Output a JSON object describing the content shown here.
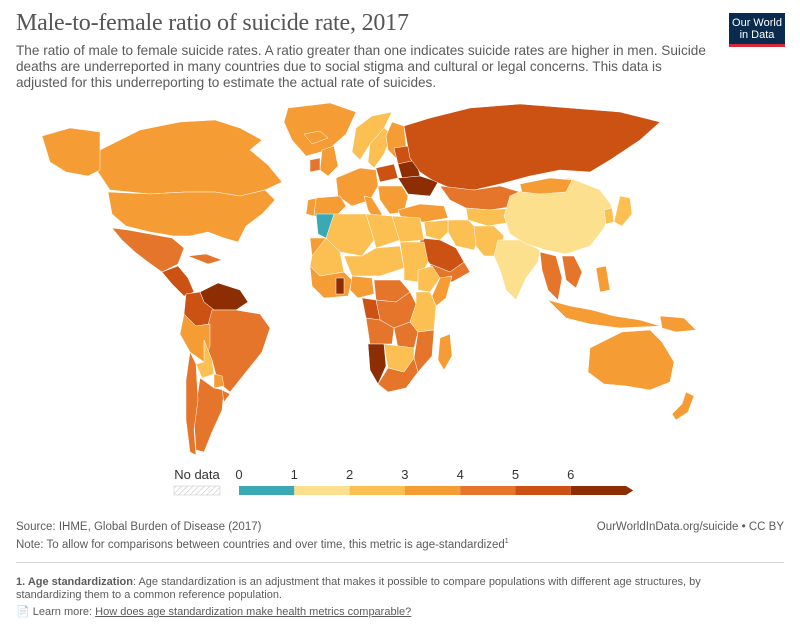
{
  "header": {
    "title": "Male-to-female ratio of suicide rate, 2017",
    "subtitle": "The ratio of male to female suicide rates. A ratio greater than one indicates suicide rates are higher in men. Suicide deaths are underreported in many countries due to social stigma and cultural or legal concerns. This data is adjusted for this underreporting to estimate the actual rate of suicides."
  },
  "logo": {
    "line1": "Our World",
    "line2": "in Data",
    "bg": "#0b2b4e",
    "accent": "#d42a37"
  },
  "legend": {
    "no_data_label": "No data",
    "ticks": [
      "0",
      "1",
      "2",
      "3",
      "4",
      "5",
      "6"
    ],
    "colors": [
      "#3aa9b4",
      "#fce08e",
      "#fbbf52",
      "#f69c34",
      "#e4752a",
      "#cc5214",
      "#8c2d04"
    ]
  },
  "map_regions": [
    {
      "name": "Canada",
      "value": 3.0
    },
    {
      "name": "United States",
      "value": 3.7
    },
    {
      "name": "Greenland",
      "value": 3.4
    },
    {
      "name": "Alaska",
      "value": 3.8
    },
    {
      "name": "Mexico",
      "value": 4.2
    },
    {
      "name": "Central America",
      "value": 5.1
    },
    {
      "name": "Cuba",
      "value": 4.0
    },
    {
      "name": "Venezuela",
      "value": 6.0
    },
    {
      "name": "Colombia",
      "value": 5.2
    },
    {
      "name": "Brazil",
      "value": 4.3
    },
    {
      "name": "Peru",
      "value": 3.4
    },
    {
      "name": "Bolivia",
      "value": 2.5
    },
    {
      "name": "Paraguay",
      "value": 3.8
    },
    {
      "name": "Argentina",
      "value": 4.4
    },
    {
      "name": "Chile",
      "value": 4.6
    },
    {
      "name": "Uruguay",
      "value": 4.8
    },
    {
      "name": "Iceland",
      "value": 3.8
    },
    {
      "name": "Norway",
      "value": 2.9
    },
    {
      "name": "Sweden",
      "value": 2.6
    },
    {
      "name": "Finland",
      "value": 3.1
    },
    {
      "name": "United Kingdom",
      "value": 3.7
    },
    {
      "name": "Ireland",
      "value": 4.2
    },
    {
      "name": "Western Europe",
      "value": 3.2
    },
    {
      "name": "Spain",
      "value": 3.5
    },
    {
      "name": "Portugal",
      "value": 3.9
    },
    {
      "name": "Italy",
      "value": 3.6
    },
    {
      "name": "Poland",
      "value": 5.6
    },
    {
      "name": "Baltic States",
      "value": 5.7
    },
    {
      "name": "Belarus",
      "value": 6.1
    },
    {
      "name": "Ukraine",
      "value": 6.2
    },
    {
      "name": "Balkans",
      "value": 3.6
    },
    {
      "name": "Turkey",
      "value": 3.2
    },
    {
      "name": "Russia",
      "value": 5.1
    },
    {
      "name": "Kazakhstan",
      "value": 4.7
    },
    {
      "name": "Central Asia",
      "value": 2.8
    },
    {
      "name": "Iran",
      "value": 2.3
    },
    {
      "name": "Iraq / Syria",
      "value": 2.7
    },
    {
      "name": "Saudi Arabia",
      "value": 5.1
    },
    {
      "name": "Yemen / Oman",
      "value": 4.3
    },
    {
      "name": "Afghanistan / Pakistan",
      "value": 2.4
    },
    {
      "name": "India",
      "value": 1.6
    },
    {
      "name": "China",
      "value": 1.5
    },
    {
      "name": "Mongolia",
      "value": 3.2
    },
    {
      "name": "Korea",
      "value": 2.6
    },
    {
      "name": "Japan",
      "value": 2.7
    },
    {
      "name": "Myanmar / Thailand",
      "value": 4.3
    },
    {
      "name": "Vietnam / Laos",
      "value": 4.0
    },
    {
      "name": "Indonesia",
      "value": 3.6
    },
    {
      "name": "Philippines",
      "value": 3.4
    },
    {
      "name": "Papua New Guinea",
      "value": 3.3
    },
    {
      "name": "Australia",
      "value": 3.3
    },
    {
      "name": "New Zealand",
      "value": 3.6
    },
    {
      "name": "Morocco",
      "value": 0.6
    },
    {
      "name": "Western Sahara",
      "value": 3.4
    },
    {
      "name": "Algeria",
      "value": 2.6
    },
    {
      "name": "Libya",
      "value": 2.8
    },
    {
      "name": "Egypt",
      "value": 2.2
    },
    {
      "name": "Mauritania / Mali",
      "value": 2.6
    },
    {
      "name": "Niger / Chad",
      "value": 2.4
    },
    {
      "name": "Sudan",
      "value": 2.7
    },
    {
      "name": "West Africa",
      "value": 3.3
    },
    {
      "name": "Ghana",
      "value": 6.0
    },
    {
      "name": "Nigeria",
      "value": 3.1
    },
    {
      "name": "Ethiopia",
      "value": 2.3
    },
    {
      "name": "Somalia",
      "value": 3.4
    },
    {
      "name": "Central Africa",
      "value": 4.3
    },
    {
      "name": "Congo (DRC)",
      "value": 4.2
    },
    {
      "name": "Gabon",
      "value": 5.2
    },
    {
      "name": "Kenya / Tanzania",
      "value": 2.6
    },
    {
      "name": "Angola",
      "value": 4.1
    },
    {
      "name": "Zambia",
      "value": 4.4
    },
    {
      "name": "Mozambique",
      "value": 4.6
    },
    {
      "name": "Namibia",
      "value": 6.2
    },
    {
      "name": "Botswana / Zimbabwe",
      "value": 2.6
    },
    {
      "name": "South Africa",
      "value": 4.7
    },
    {
      "name": "Madagascar",
      "value": 3.8
    }
  ],
  "footer": {
    "source": "Source: IHME, Global Burden of Disease (2017)",
    "attribution": "OurWorldInData.org/suicide • CC BY",
    "note": "Note: To allow for comparisons between countries and over time, this metric is age-standardized",
    "note_sup": "1",
    "footnote_term": "1. Age standardization",
    "footnote_text": ": Age standardization is an adjustment that makes it possible to compare populations with different age structures, by standardizing them to a common reference population.",
    "learn_prefix": "Learn more: ",
    "learn_link": "How does age standardization make health metrics comparable?"
  }
}
